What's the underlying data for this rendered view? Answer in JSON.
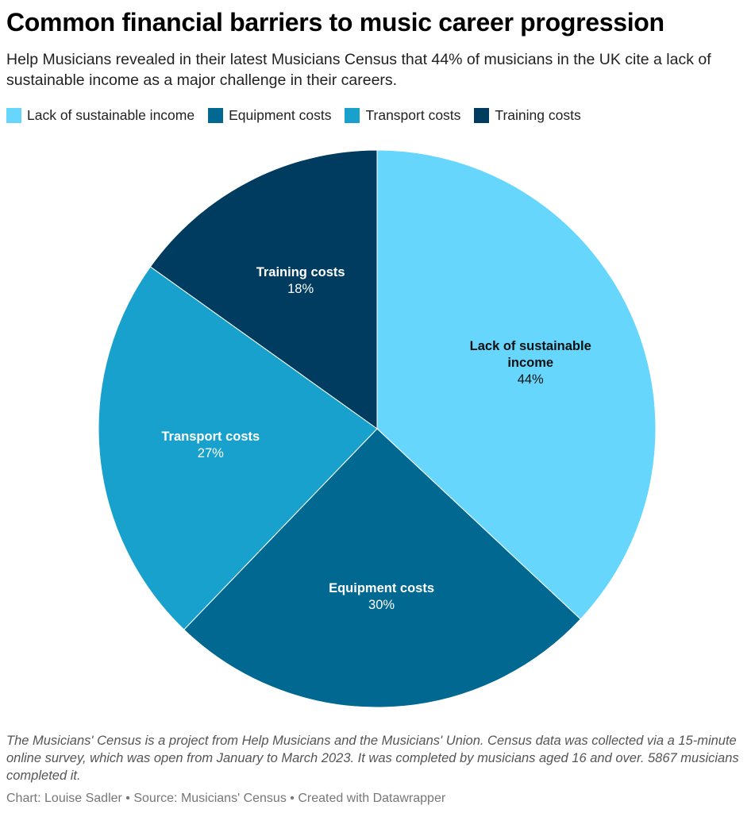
{
  "title": "Common financial barriers to music career progression",
  "subtitle": "Help Musicians revealed in their latest Musicians Census that 44% of musicians in the UK cite a lack of sustainable income as a major challenge in their careers.",
  "notes": "The Musicians' Census is a project from Help Musicians and the Musicians' Union. Census data was collected via a 15-minute online survey, which was open from January to March 2023. It was completed by musicians aged 16 and over. 5867 musicians completed it.",
  "credit": "Chart: Louise Sadler • Source: Musicians' Census • Created with Datawrapper",
  "chart_data": {
    "type": "pie",
    "title": "Common financial barriers to music career progression",
    "legend_placement": "top-left",
    "slices": [
      {
        "label": "Lack of sustainable income",
        "label_lines": [
          "Lack of sustainable",
          "income"
        ],
        "value": 44,
        "value_label": "44%",
        "color": "#67d6fd",
        "text_color": "#111111"
      },
      {
        "label": "Equipment costs",
        "label_lines": [
          "Equipment costs"
        ],
        "value": 30,
        "value_label": "30%",
        "color": "#016891",
        "text_color": "#ffffff"
      },
      {
        "label": "Transport costs",
        "label_lines": [
          "Transport costs"
        ],
        "value": 27,
        "value_label": "27%",
        "color": "#18a1cd",
        "text_color": "#ffffff"
      },
      {
        "label": "Training costs",
        "label_lines": [
          "Training costs"
        ],
        "value": 18,
        "value_label": "18%",
        "color": "#003c5f",
        "text_color": "#ffffff"
      }
    ]
  }
}
